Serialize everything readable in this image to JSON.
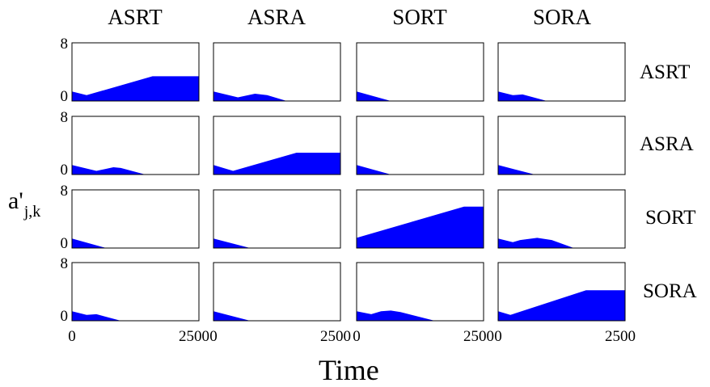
{
  "figure": {
    "column_titles": [
      "ASRT",
      "ASRA",
      "SORT",
      "SORA"
    ],
    "row_titles": [
      "ASRT",
      "ASRA",
      "SORT",
      "SORA"
    ],
    "ylabel_main": "a'",
    "ylabel_sub": "j,k",
    "xlabel": "Time",
    "fill_color": "#0000ff",
    "frame_color": "#000000"
  },
  "chart_data": {
    "type": "area",
    "layout": "4x4 small multiples",
    "xlim": [
      0,
      2600
    ],
    "ylim": [
      0,
      8
    ],
    "y_ticks": [
      "0",
      "8"
    ],
    "x_ticks": [
      "0",
      "2500"
    ],
    "panels": [
      [
        {
          "x": [
            0,
            300,
            1650,
            2600
          ],
          "y": [
            1.3,
            0.8,
            3.4,
            3.4
          ]
        },
        {
          "x": [
            0,
            500,
            850,
            1100,
            1500
          ],
          "y": [
            1.3,
            0.5,
            1.0,
            0.8,
            0
          ]
        },
        {
          "x": [
            0,
            700
          ],
          "y": [
            1.3,
            0
          ]
        },
        {
          "x": [
            0,
            300,
            500,
            1000
          ],
          "y": [
            1.3,
            0.8,
            0.9,
            0
          ]
        }
      ],
      [
        {
          "x": [
            0,
            500,
            850,
            1000,
            1500
          ],
          "y": [
            1.3,
            0.5,
            1.0,
            0.9,
            0
          ]
        },
        {
          "x": [
            0,
            400,
            1700,
            2600
          ],
          "y": [
            1.3,
            0.5,
            3.0,
            3.0
          ]
        },
        {
          "x": [
            0,
            700
          ],
          "y": [
            1.3,
            0
          ]
        },
        {
          "x": [
            0,
            750
          ],
          "y": [
            1.3,
            0
          ]
        }
      ],
      [
        {
          "x": [
            0,
            700
          ],
          "y": [
            1.3,
            0
          ]
        },
        {
          "x": [
            0,
            750
          ],
          "y": [
            1.3,
            0
          ]
        },
        {
          "x": [
            0,
            2200,
            2600
          ],
          "y": [
            1.4,
            5.7,
            5.7
          ]
        },
        {
          "x": [
            0,
            300,
            450,
            800,
            1100,
            1550
          ],
          "y": [
            1.3,
            0.8,
            1.1,
            1.4,
            1.1,
            0
          ]
        }
      ],
      [
        {
          "x": [
            0,
            300,
            500,
            1000
          ],
          "y": [
            1.3,
            0.8,
            0.9,
            0
          ]
        },
        {
          "x": [
            0,
            750
          ],
          "y": [
            1.3,
            0
          ]
        },
        {
          "x": [
            0,
            300,
            500,
            700,
            900,
            1600
          ],
          "y": [
            1.3,
            0.9,
            1.3,
            1.4,
            1.2,
            0
          ]
        },
        {
          "x": [
            0,
            250,
            1800,
            2600
          ],
          "y": [
            1.3,
            0.8,
            4.2,
            4.2
          ]
        }
      ]
    ]
  }
}
